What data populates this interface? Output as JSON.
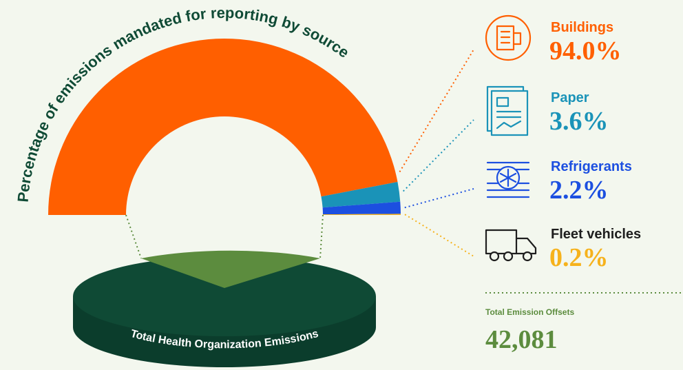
{
  "chart_data": {
    "type": "semidonut",
    "title": "Percentage of emissions mandated for reporting by source",
    "categories": [
      "Buildings",
      "Paper",
      "Refrigerants",
      "Fleet vehicles"
    ],
    "values": [
      94.0,
      3.6,
      2.2,
      0.2
    ],
    "value_labels": [
      "94.0%",
      "3.6%",
      "2.2%",
      "0.2%"
    ],
    "colors": [
      "#ff5f00",
      "#1a93b8",
      "#1c4fe0",
      "#f6b21c"
    ],
    "label_colors": [
      "#ff5f00",
      "#1a93b8",
      "#1c4fe0",
      "#1e1e1e"
    ],
    "base_label": "Total Health Organization Emissions"
  },
  "offsets": {
    "label": "Total Emission Offsets",
    "value": "42,081"
  }
}
